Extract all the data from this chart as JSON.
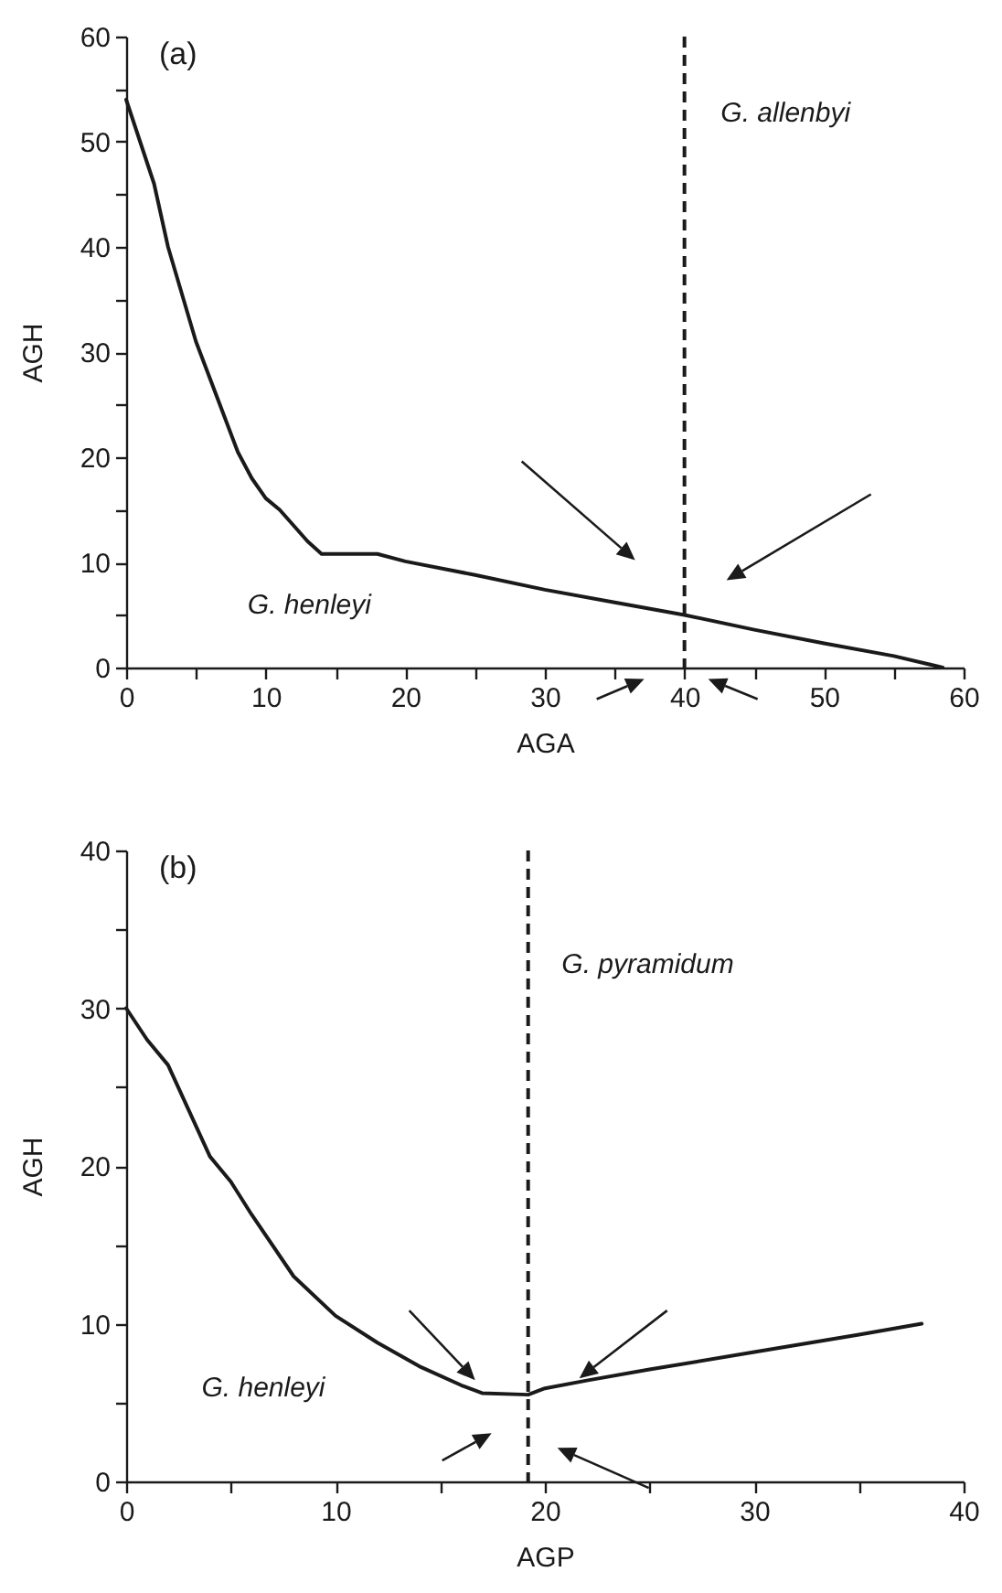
{
  "chart_data": [
    {
      "type": "line",
      "title": "(a)",
      "xlabel": "AGA",
      "ylabel": "AGH",
      "color": "#1a1a1a",
      "x": [
        0,
        1,
        2,
        3,
        4,
        5,
        6,
        7,
        8,
        9,
        10,
        11,
        12,
        13,
        14,
        18,
        20,
        25,
        30,
        35,
        40,
        45,
        50,
        55,
        58.5
      ],
      "values": [
        54,
        50,
        46,
        40,
        35.5,
        31,
        27.5,
        24,
        20.5,
        18,
        16.1,
        15,
        13.5,
        12,
        10.8,
        10.8,
        10.1,
        8.8,
        7.4,
        6.2,
        5,
        3.6,
        2.3,
        1.1,
        0
      ],
      "xlim": [
        0,
        60
      ],
      "xticks": [
        0,
        {
          "value": 5,
          "label": null
        },
        10,
        {
          "value": 15,
          "label": null
        },
        20,
        {
          "value": 25,
          "label": null
        },
        30,
        {
          "value": 35,
          "label": null
        },
        40,
        {
          "value": 45,
          "label": null
        },
        50,
        {
          "value": 55,
          "label": null
        },
        60
      ],
      "ylim": [
        0,
        60
      ],
      "yticks": [
        0,
        {
          "value": 5,
          "label": null
        },
        10,
        {
          "value": 15,
          "label": null
        },
        20,
        {
          "value": 25,
          "label": null
        },
        30,
        {
          "value": 35,
          "label": null
        },
        40,
        {
          "value": 45,
          "label": null
        },
        50,
        {
          "value": 55,
          "label": null
        },
        60
      ],
      "ref_lines": [
        {
          "axis": "x",
          "value": 40,
          "line_style": "dashed",
          "color": "#1a1a1a"
        }
      ],
      "annotations": [
        "G. allenbyi",
        "G. henleyi"
      ]
    },
    {
      "type": "line",
      "title": "(b)",
      "xlabel": "AGP",
      "ylabel": "AGH",
      "color": "#1a1a1a",
      "x": [
        0,
        1,
        2,
        4,
        5,
        6,
        8,
        10,
        12,
        14,
        16,
        17,
        19.2,
        20,
        22,
        25,
        30,
        35,
        38
      ],
      "values": [
        30,
        28,
        26.4,
        20.6,
        19,
        16.9,
        13,
        10.5,
        8.8,
        7.3,
        6.1,
        5.6,
        5.5,
        5.9,
        6.4,
        7.1,
        8.2,
        9.3,
        10
      ],
      "xlim": [
        0,
        40
      ],
      "xticks": [
        0,
        {
          "value": 5,
          "label": null
        },
        10,
        {
          "value": 15,
          "label": null
        },
        20,
        {
          "value": 25,
          "label": null
        },
        30,
        {
          "value": 35,
          "label": null
        },
        40
      ],
      "ylim": [
        0,
        40
      ],
      "yticks": [
        0,
        {
          "value": 5,
          "label": null
        },
        10,
        {
          "value": 15,
          "label": null
        },
        20,
        {
          "value": 25,
          "label": null
        },
        30,
        {
          "value": 35,
          "label": null
        },
        40
      ],
      "ref_lines": [
        {
          "axis": "x",
          "value": 19.2,
          "line_style": "dashed",
          "color": "#1a1a1a"
        }
      ],
      "annotations": [
        "G. pyramidum",
        "G. henleyi"
      ]
    }
  ]
}
